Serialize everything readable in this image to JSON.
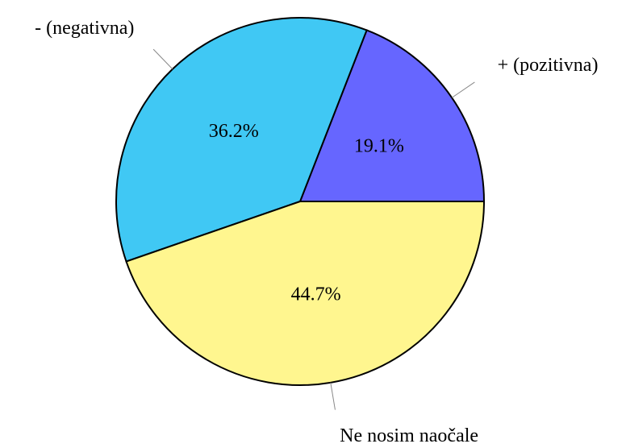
{
  "chart_data": {
    "type": "pie",
    "categories": [
      "+ (pozitivna)",
      "- (negativna)",
      "Ne nosim naočale"
    ],
    "values": [
      19.1,
      36.2,
      44.7
    ],
    "value_labels": [
      "19.1%",
      "36.2%",
      "44.7%"
    ],
    "colors": [
      "#6666ff",
      "#40c8f4",
      "#fff68f"
    ]
  }
}
